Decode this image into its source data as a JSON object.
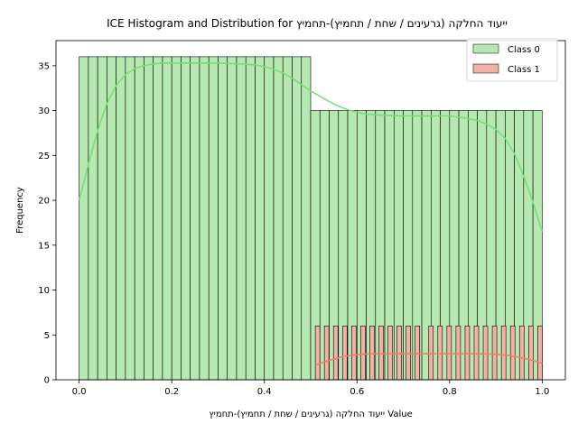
{
  "chart_data": {
    "type": "histogram",
    "title": "ICE Histogram and Distribution for ייעוד החלקה (גרעינים / שחת / תחמיץ)-תחמיץ",
    "xlabel": "ייעוד החלקה (גרעינים / שחת / תחמיץ)-תחמיץ Value",
    "ylabel": "Frequency",
    "xlim": [
      -0.05,
      1.05
    ],
    "ylim": [
      0,
      37.8
    ],
    "xticks": [
      0.0,
      0.2,
      0.4,
      0.6,
      0.8,
      1.0
    ],
    "xtick_labels": [
      "0.0",
      "0.2",
      "0.4",
      "0.6",
      "0.8",
      "1.0"
    ],
    "yticks": [
      0,
      5,
      10,
      15,
      20,
      25,
      30,
      35
    ],
    "ytick_labels": [
      "0",
      "5",
      "10",
      "15",
      "20",
      "25",
      "30",
      "35"
    ],
    "grid": false,
    "legend_position": "top-right",
    "series": [
      {
        "name": "Class 0",
        "fill_color": "#b6e8b1",
        "line_color": "#77dd77",
        "bins": {
          "start": 0.0,
          "width": 0.02,
          "counts": [
            36,
            36,
            36,
            36,
            36,
            36,
            36,
            36,
            36,
            36,
            36,
            36,
            36,
            36,
            36,
            36,
            36,
            36,
            36,
            36,
            36,
            36,
            36,
            36,
            36,
            30,
            30,
            30,
            30,
            30,
            30,
            30,
            30,
            30,
            30,
            30,
            30,
            30,
            30,
            30,
            30,
            30,
            30,
            30,
            30,
            30,
            30,
            30,
            30,
            30
          ]
        },
        "kde": {
          "x": [
            0.0,
            0.02,
            0.04,
            0.06,
            0.08,
            0.1,
            0.12,
            0.14,
            0.16,
            0.18,
            0.2,
            0.22,
            0.25,
            0.3,
            0.35,
            0.38,
            0.4,
            0.42,
            0.44,
            0.46,
            0.48,
            0.5,
            0.52,
            0.54,
            0.56,
            0.58,
            0.6,
            0.62,
            0.65,
            0.7,
            0.75,
            0.8,
            0.83,
            0.86,
            0.88,
            0.9,
            0.92,
            0.94,
            0.96,
            0.98,
            1.0
          ],
          "y": [
            20.0,
            24.0,
            27.8,
            30.8,
            32.8,
            34.0,
            34.7,
            35.0,
            35.2,
            35.3,
            35.3,
            35.3,
            35.3,
            35.3,
            35.2,
            35.1,
            34.9,
            34.6,
            34.2,
            33.6,
            32.9,
            32.2,
            31.6,
            31.0,
            30.5,
            30.1,
            29.8,
            29.6,
            29.5,
            29.4,
            29.4,
            29.4,
            29.2,
            28.9,
            28.5,
            27.9,
            26.9,
            25.2,
            22.7,
            19.8,
            16.5
          ]
        }
      },
      {
        "name": "Class 1",
        "fill_color": "#f4b0a4",
        "line_color": "#f57a6c",
        "bins": {
          "start": 0.51,
          "width": 0.0098,
          "counts": [
            6,
            0,
            6,
            0,
            6,
            0,
            6,
            0,
            6,
            0,
            6,
            0,
            6,
            0,
            6,
            0,
            6,
            0,
            6,
            0,
            6,
            0,
            6,
            0,
            0,
            6,
            0,
            6,
            0,
            6,
            0,
            6,
            0,
            6,
            0,
            6,
            0,
            6,
            0,
            6,
            0,
            6,
            0,
            6,
            0,
            6,
            0,
            6,
            0,
            6
          ]
        },
        "kde": {
          "x": [
            0.51,
            0.53,
            0.55,
            0.57,
            0.6,
            0.63,
            0.66,
            0.7,
            0.75,
            0.8,
            0.85,
            0.9,
            0.93,
            0.95,
            0.97,
            0.99,
            1.0
          ],
          "y": [
            1.6,
            2.0,
            2.3,
            2.6,
            2.8,
            2.9,
            2.9,
            2.9,
            2.9,
            2.9,
            2.9,
            2.85,
            2.7,
            2.5,
            2.3,
            2.0,
            1.8
          ]
        }
      }
    ]
  }
}
